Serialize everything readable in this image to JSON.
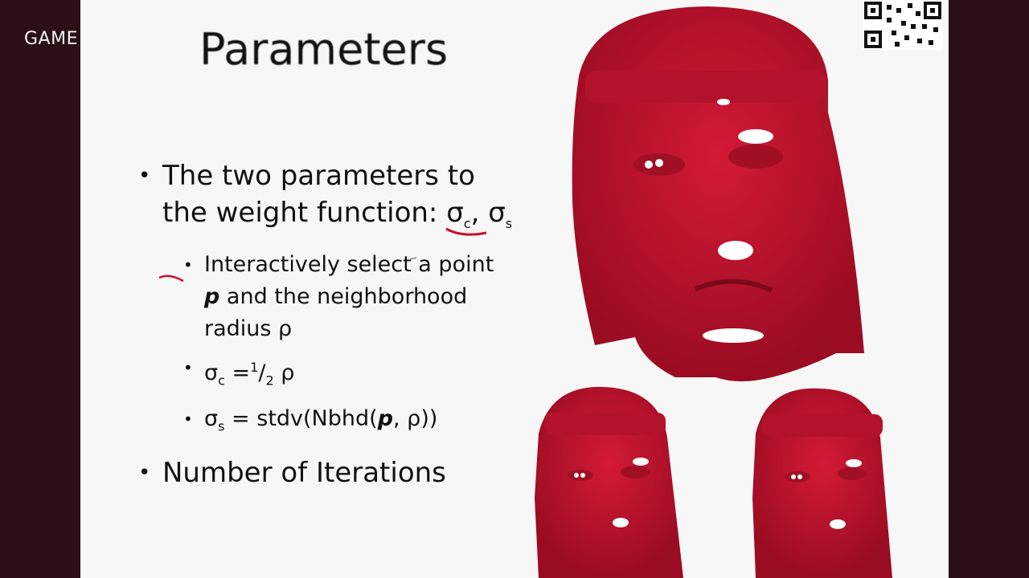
{
  "brand": {
    "label": "GAME"
  },
  "slide": {
    "title": "Parameters",
    "bullet1": {
      "text_a": "The two parameters to the weight function: ",
      "sigma_c_symbol": "σ",
      "sigma_c_sub": "c",
      "comma": ",",
      "sigma_s_symbol": "σ",
      "sigma_s_sub": "s"
    },
    "sub1": {
      "a": "Interactively select a point ",
      "p": "p",
      "b": " and the neighborhood radius ρ"
    },
    "sub2": {
      "sym": "σ",
      "sub": "c",
      "eq": " =",
      "sup": "1",
      "frac": "/",
      "den": "2",
      "rho": " ρ"
    },
    "sub3": {
      "sym": "σ",
      "sub": "s",
      "a": " = stdv(Nbhd(",
      "p": "p",
      "b": ", ρ))"
    },
    "bullet2": {
      "text": "Number of Iterations"
    }
  },
  "colors": {
    "face_red": "#c8102e",
    "face_dark": "#8b0a1e",
    "slide_bg": "#f7f7f7",
    "border": "#2a0f16"
  },
  "icons": {
    "qr": "qr-code-icon"
  }
}
